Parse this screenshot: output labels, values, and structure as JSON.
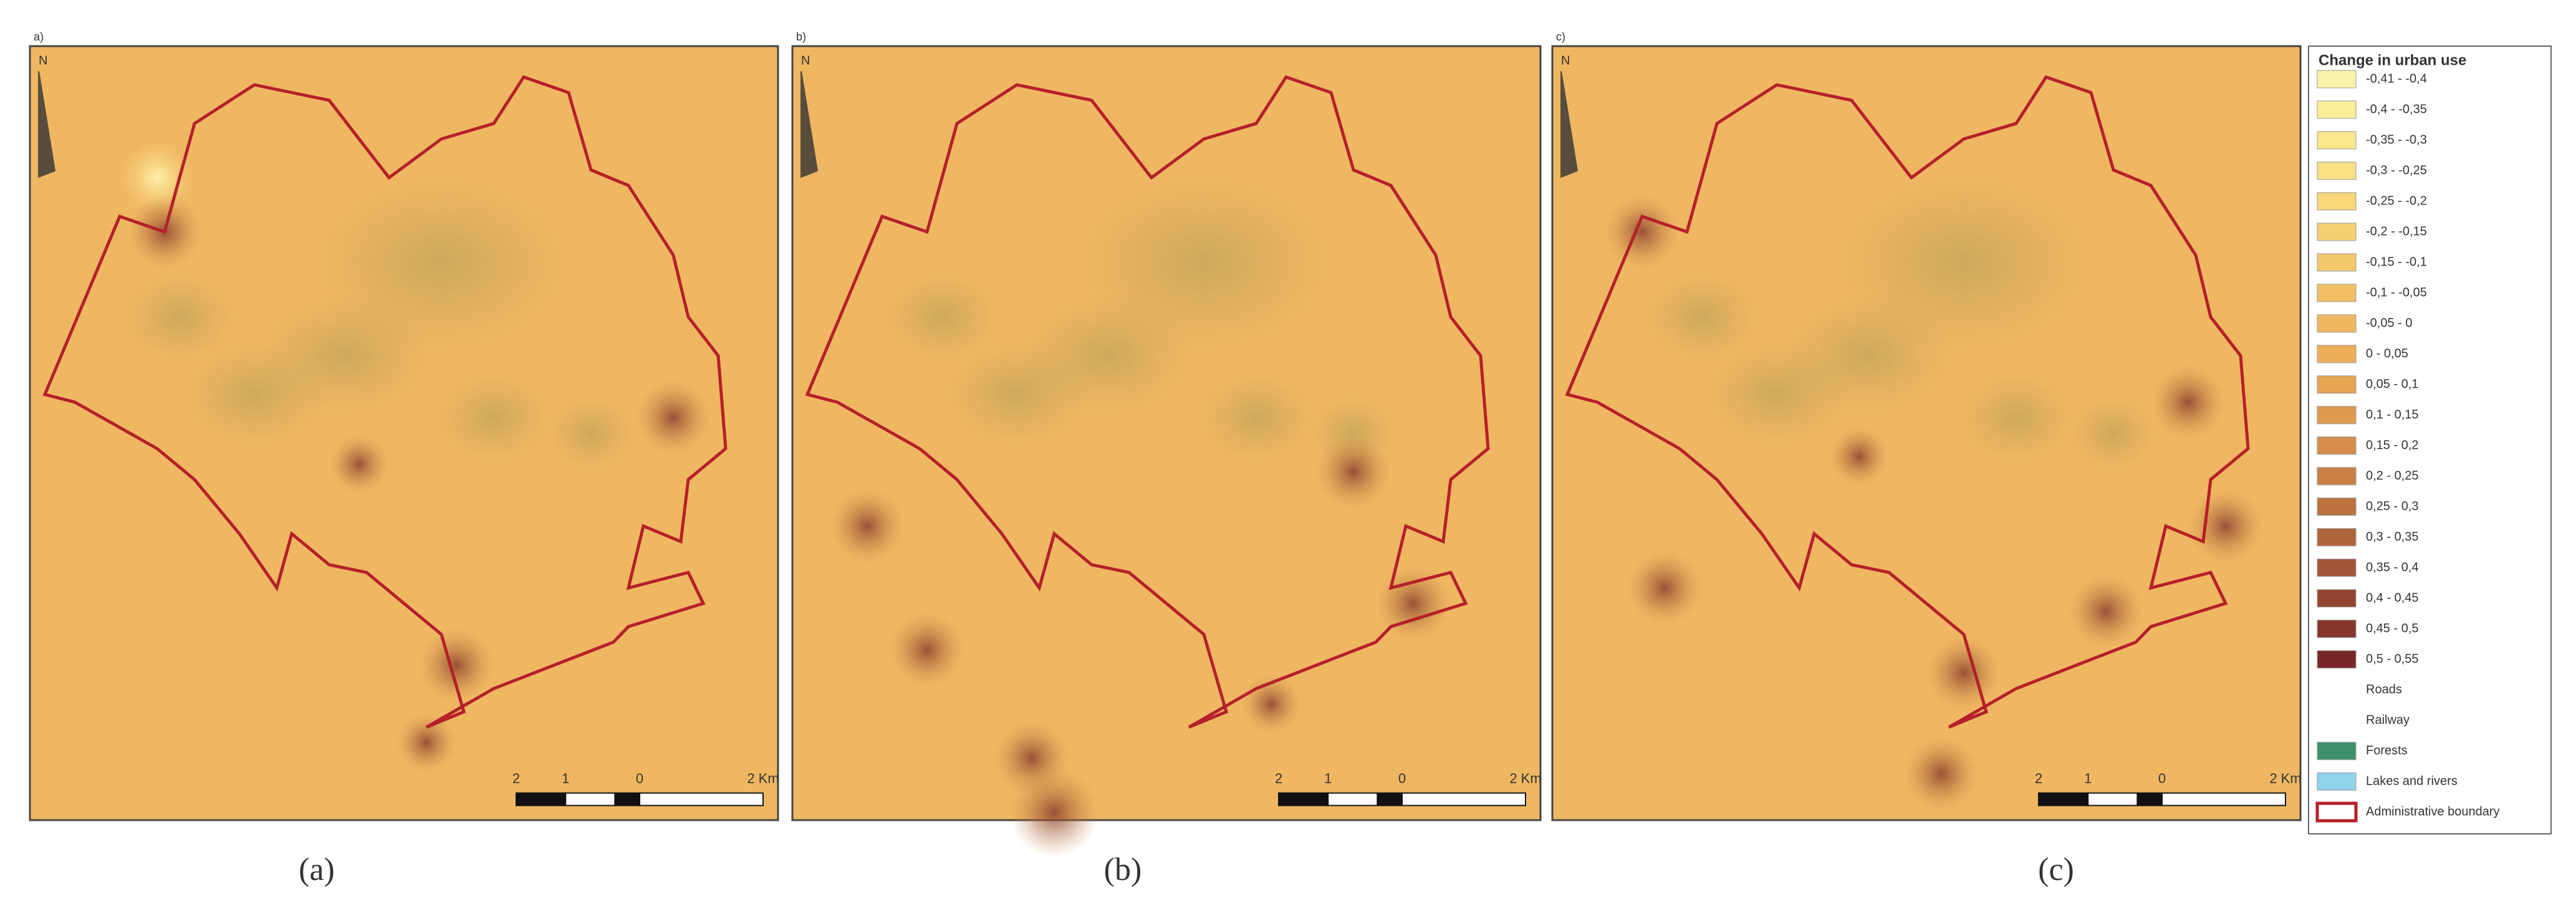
{
  "panels": [
    {
      "tag": "a)",
      "north": "N",
      "scale": [
        "2",
        "1",
        "0",
        "2 Km"
      ],
      "caption": "(a)"
    },
    {
      "tag": "b)",
      "north": "N",
      "scale": [
        "2",
        "1",
        "0",
        "2 Km"
      ],
      "caption": "(b)"
    },
    {
      "tag": "c)",
      "north": "N",
      "scale": [
        "2",
        "1",
        "0",
        "2 Km"
      ],
      "caption": "(c)"
    }
  ],
  "legend": {
    "title": "Change in urban use",
    "items": [
      {
        "label": "-0,41 - -0,4",
        "color": "#fbf3a8"
      },
      {
        "label": "-0,4 - -0,35",
        "color": "#fbee98"
      },
      {
        "label": "-0,35 - -0,3",
        "color": "#fae88c"
      },
      {
        "label": "-0,3 - -0,25",
        "color": "#f9e082"
      },
      {
        "label": "-0,25 - -0,2",
        "color": "#f8d879"
      },
      {
        "label": "-0,2 - -0,15",
        "color": "#f6cf71"
      },
      {
        "label": "-0,15 - -0,1",
        "color": "#f4c76a"
      },
      {
        "label": "-0,1 - -0,05",
        "color": "#f2bf64"
      },
      {
        "label": "-0,05 - 0",
        "color": "#f0b75e"
      },
      {
        "label": "0 - 0,05",
        "color": "#eeae58"
      },
      {
        "label": "0,05 - 0,1",
        "color": "#e7a453"
      },
      {
        "label": "0,1 - 0,15",
        "color": "#df994e"
      },
      {
        "label": "0,15 - 0,2",
        "color": "#d58d49"
      },
      {
        "label": "0,2 - 0,25",
        "color": "#ca8044"
      },
      {
        "label": "0,25 - 0,3",
        "color": "#bd7240"
      },
      {
        "label": "0,3 - 0,35",
        "color": "#b0643b"
      },
      {
        "label": "0,35 - 0,4",
        "color": "#a25536"
      },
      {
        "label": "0,4 - 0,45",
        "color": "#944531"
      },
      {
        "label": "0,45 - 0,5",
        "color": "#86362c"
      },
      {
        "label": "0,5 - 0,55",
        "color": "#782627"
      },
      {
        "label": "Roads",
        "color": "none"
      },
      {
        "label": "Railway",
        "color": "none"
      },
      {
        "label": "Forests",
        "color": "#3e8f6c"
      },
      {
        "label": "Lakes and rivers",
        "color": "#8fd3ea"
      },
      {
        "label": "Administrative boundary",
        "color": "#ffffff"
      }
    ]
  }
}
